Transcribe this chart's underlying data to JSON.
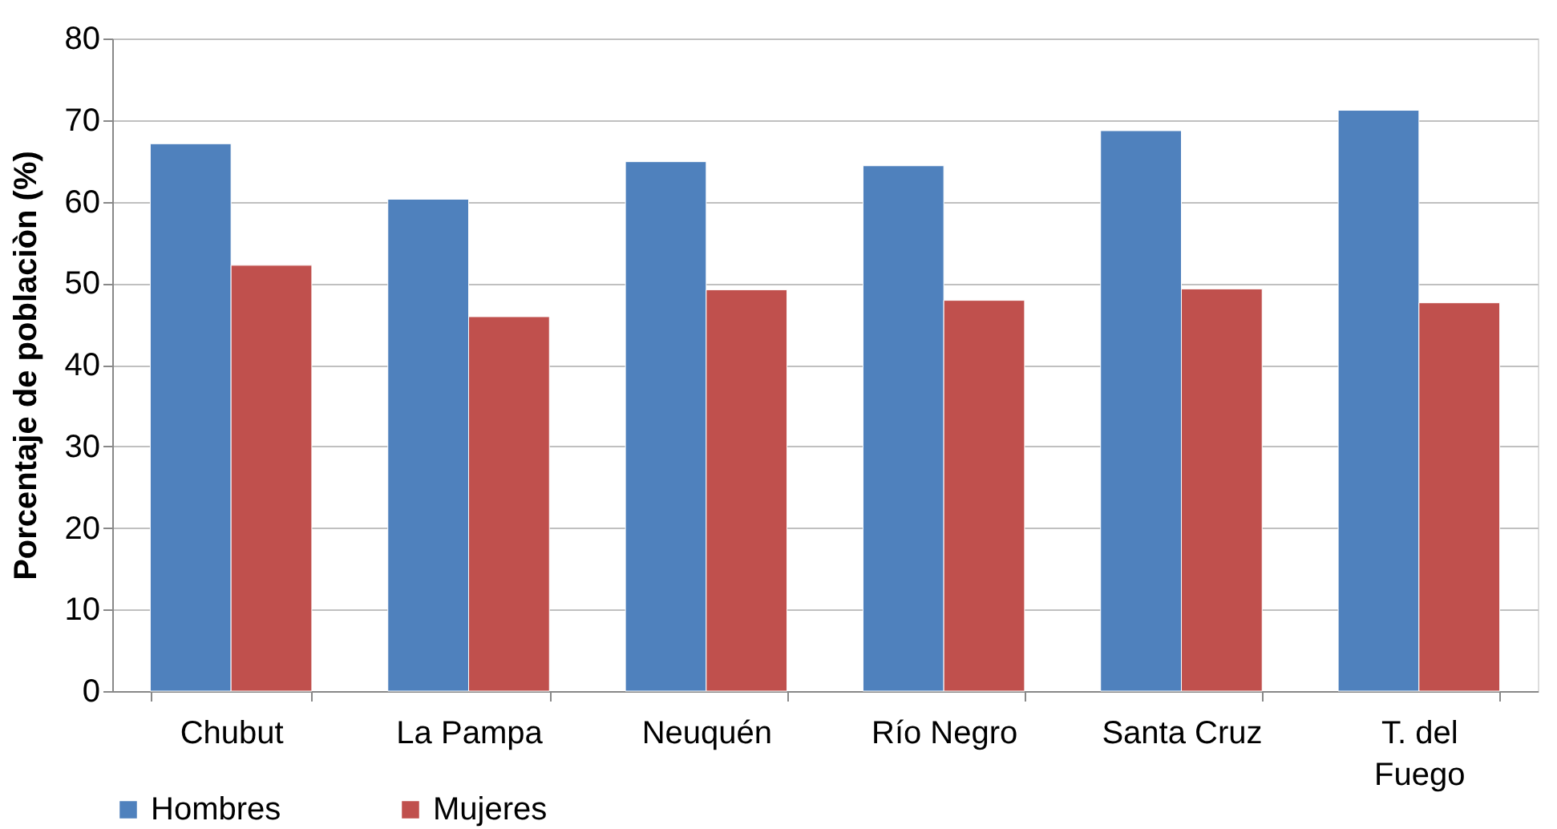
{
  "chart_data": {
    "type": "bar",
    "ylabel": "Porcentaje de poblaciòn (%)",
    "categories": [
      "Chubut",
      "La Pampa",
      "Neuquén",
      "Río Negro",
      "Santa Cruz",
      "T. del Fuego"
    ],
    "series": [
      {
        "name": "Hombres",
        "color": "#4f81bd",
        "values": [
          67.1,
          60.3,
          64.9,
          64.4,
          68.7,
          71.2
        ]
      },
      {
        "name": "Mujeres",
        "color": "#c0504d",
        "values": [
          52.2,
          45.9,
          49.2,
          47.9,
          49.3,
          47.6
        ]
      }
    ],
    "ylim": [
      0,
      80
    ],
    "yticks": [
      0,
      10,
      20,
      30,
      40,
      50,
      60,
      70,
      80
    ],
    "grid": "y",
    "legend": "bottom"
  }
}
